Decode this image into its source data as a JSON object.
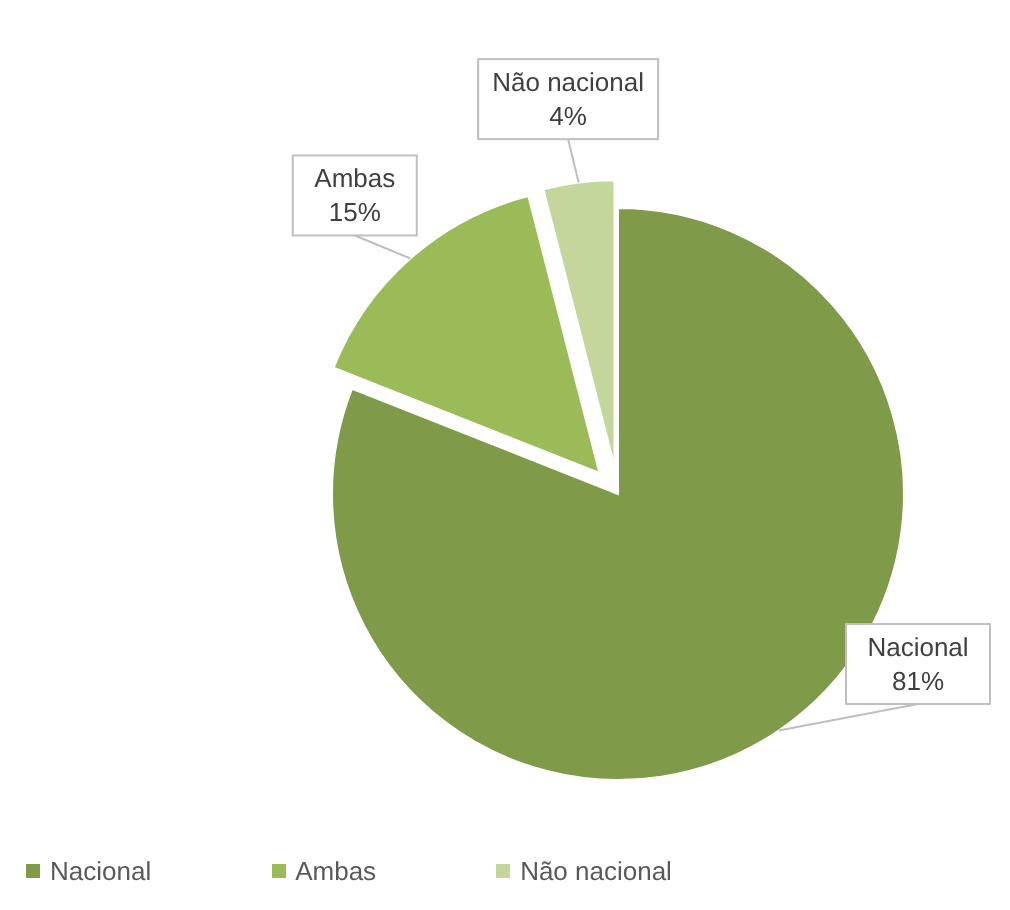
{
  "chart_data": {
    "type": "pie",
    "categories": [
      "Nacional",
      "Ambas",
      "Não nacional"
    ],
    "values": [
      81,
      15,
      4
    ],
    "colors": [
      "#7f9a48",
      "#9bbb59",
      "#c3d69b"
    ],
    "value_labels": [
      "81%",
      "15%",
      "4%"
    ],
    "legend": "bottom"
  }
}
